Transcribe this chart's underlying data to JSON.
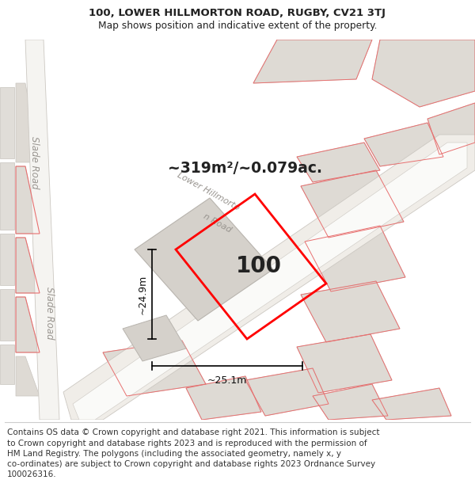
{
  "title": "100, LOWER HILLMORTON ROAD, RUGBY, CV21 3TJ",
  "subtitle": "Map shows position and indicative extent of the property.",
  "footer": "Contains OS data © Crown copyright and database right 2021. This information is subject\nto Crown copyright and database rights 2023 and is reproduced with the permission of\nHM Land Registry. The polygons (including the associated geometry, namely x, y\nco-ordinates) are subject to Crown copyright and database rights 2023 Ordnance Survey\n100026316.",
  "title_fontsize": 9.5,
  "subtitle_fontsize": 8.8,
  "footer_fontsize": 7.5,
  "area_text": "~319m²/~0.079ac.",
  "number_text": "100",
  "dim_h": "~24.9m",
  "dim_w": "~25.1m",
  "road1_label": "Slade Road",
  "road2_label": "Lower Hillmorto",
  "road2_label2": "n Road",
  "map_bg": "#f2f0ed",
  "property_color": "#ff0000",
  "property_linewidth": 2.0,
  "road_color": "#ffffff",
  "road_edge": "#d0ccc6",
  "block_color": "#dedad4",
  "block_edge": "#c8c4be",
  "red_line_color": "#e87070",
  "dim_color": "#111111",
  "label_color": "#999590",
  "text_color": "#222222"
}
